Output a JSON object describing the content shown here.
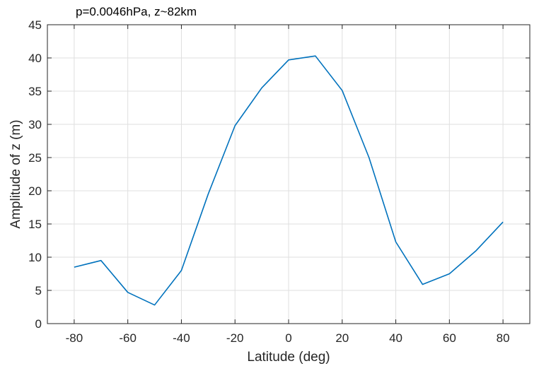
{
  "chart_data": {
    "type": "line",
    "title": "p=0.0046hPa, z~82km",
    "xlabel": "Latitude (deg)",
    "ylabel": "Amplitude of z (m)",
    "xlim": [
      -90,
      90
    ],
    "ylim": [
      0,
      45
    ],
    "xticks": [
      -80,
      -60,
      -40,
      -20,
      0,
      20,
      40,
      60,
      80
    ],
    "yticks": [
      0,
      5,
      10,
      15,
      20,
      25,
      30,
      35,
      40,
      45
    ],
    "grid": true,
    "series": [
      {
        "color": "#0072BD",
        "x": [
          -80,
          -70,
          -60,
          -50,
          -40,
          -30,
          -20,
          -10,
          0,
          10,
          20,
          30,
          40,
          50,
          60,
          70,
          80
        ],
        "y": [
          8.5,
          9.5,
          4.7,
          2.8,
          8.0,
          19.5,
          29.8,
          35.5,
          39.7,
          40.3,
          35.1,
          25.0,
          12.3,
          5.9,
          7.5,
          11.0,
          15.3
        ]
      }
    ]
  }
}
